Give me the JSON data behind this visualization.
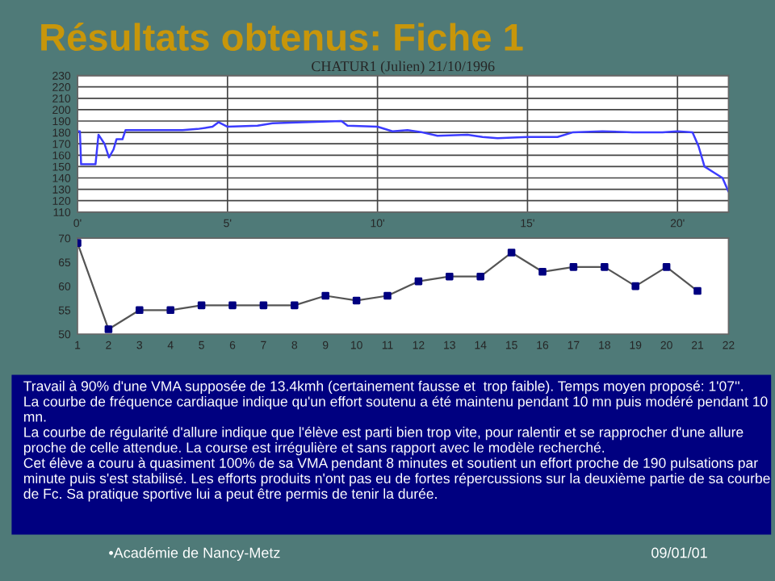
{
  "chart_data": [
    {
      "type": "line",
      "title": "Résultats obtenus: Fiche 1",
      "subtitle": "CHATUR1 (Julien) 21/10/1996",
      "x": [
        0,
        0.08,
        0.12,
        0.6,
        0.7,
        0.9,
        1.05,
        1.2,
        1.3,
        1.5,
        1.6,
        2.5,
        3.5,
        4,
        4.5,
        4.7,
        5,
        6,
        6.5,
        7.5,
        8.8,
        9,
        10,
        10.5,
        11,
        11.5,
        12,
        13,
        13.5,
        14,
        15,
        16,
        16.5,
        17.5,
        18.5,
        19.5,
        20,
        20.5,
        20.7,
        20.9,
        21.2,
        21.5,
        21.7
      ],
      "series": [
        {
          "color": "#3c3cff",
          "values": [
            181,
            181,
            152,
            152,
            178,
            170,
            158,
            165,
            174,
            174,
            182,
            182,
            182,
            183,
            185,
            189,
            185,
            186,
            188,
            189,
            190,
            186,
            185,
            181,
            182,
            180,
            177,
            178,
            176,
            175,
            176,
            176,
            180,
            181,
            180,
            180,
            181,
            180,
            168,
            150,
            145,
            140,
            128
          ]
        }
      ],
      "xlim": [
        0,
        21.7
      ],
      "ylim": [
        110,
        230
      ],
      "xticks": [
        {
          "value": 0,
          "label": "0'"
        },
        {
          "value": 5,
          "label": "5'"
        },
        {
          "value": 10,
          "label": "10'"
        },
        {
          "value": 15,
          "label": "15'"
        },
        {
          "value": 20,
          "label": "20'"
        }
      ],
      "yticks": [
        110,
        120,
        130,
        140,
        150,
        160,
        170,
        180,
        190,
        200,
        210,
        220,
        230
      ],
      "grid": true,
      "legend": false,
      "marker": "none",
      "line_style": "solid",
      "annotations": [
        "•Académie de Nancy-Metz",
        "09/01/01"
      ]
    },
    {
      "type": "line",
      "x": [
        1,
        2,
        3,
        4,
        5,
        6,
        7,
        8,
        9,
        10,
        11,
        12,
        13,
        14,
        15,
        16,
        17,
        18,
        19,
        20,
        21
      ],
      "series": [
        {
          "color": "#000080",
          "values": [
            69,
            51,
            55,
            55,
            56,
            56,
            56,
            56,
            58,
            57,
            58,
            61,
            62,
            62,
            67,
            63,
            64,
            64,
            60,
            64,
            59
          ]
        }
      ],
      "xlim": [
        1,
        22
      ],
      "ylim": [
        50,
        70
      ],
      "xticks": [
        1,
        2,
        3,
        4,
        5,
        6,
        7,
        8,
        9,
        10,
        11,
        12,
        13,
        14,
        15,
        16,
        17,
        18,
        19,
        20,
        21,
        22
      ],
      "yticks": [
        50,
        55,
        60,
        65,
        70
      ],
      "grid": false,
      "legend": false,
      "marker": "square",
      "line_style": "solid",
      "annotations": [
        "Travail à 90% d'une VMA supposée de 13.4kmh (certainement fausse et  trop faible). Temps moyen proposé: 1'07''.",
        "La courbe de fréquence cardiaque indique qu'un effort soutenu a été maintenu pendant 10 mn puis modéré pendant 10 mn.",
        "La courbe de régularité d'allure indique que l'élève est parti bien trop vite, pour ralentir et se rapprocher d'une allure proche de celle attendue. La course est irrégulière et sans rapport avec le modèle recherché.",
        "Cet élève a couru à quasiment 100% de sa VMA pendant 8 minutes et soutient un effort proche de 190 pulsations par  minute puis s'est stabilisé. Les efforts produits n'ont pas eu de fortes répercussions sur la deuxième partie de sa courbe de Fc. Sa pratique sportive lui a peut être permis de tenir la durée."
      ]
    }
  ]
}
